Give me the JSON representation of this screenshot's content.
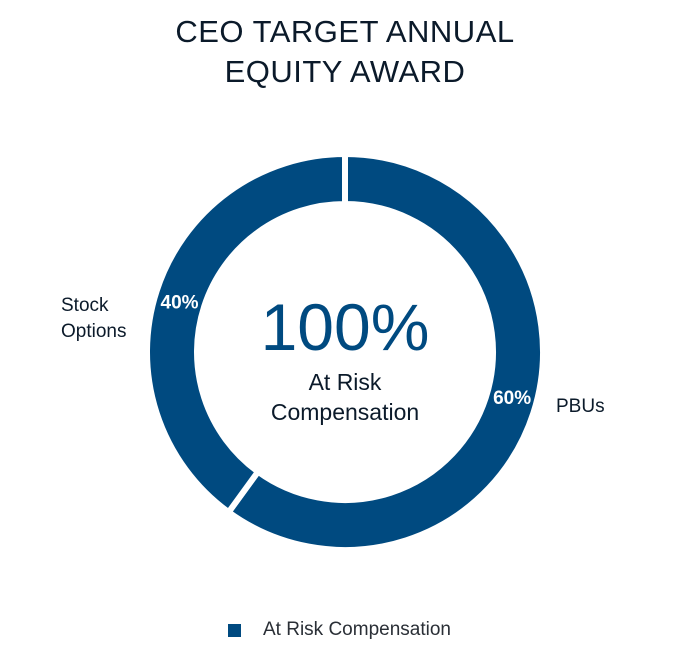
{
  "title_lines": [
    "CEO TARGET ANNUAL",
    "EQUITY AWARD"
  ],
  "center": {
    "value": "100%",
    "label_lines": [
      "At Risk",
      "Compensation"
    ]
  },
  "legend": {
    "label": "At Risk Compensation",
    "color": "#004a80"
  },
  "colors": {
    "slice": "#004a80",
    "separator": "#ffffff",
    "text_dark": "#0b1a2a",
    "center_value": "#004a80"
  },
  "chart_data": {
    "type": "pie",
    "variant": "donut",
    "title": "CEO TARGET ANNUAL EQUITY AWARD",
    "categories": [
      "PBUs",
      "Stock Options"
    ],
    "category_label_lines": [
      [
        "PBUs"
      ],
      [
        "Stock",
        "Options"
      ]
    ],
    "values": [
      60,
      40
    ],
    "value_labels": [
      "60%",
      "40%"
    ],
    "series": [
      {
        "name": "At Risk Compensation",
        "values": [
          60,
          40
        ]
      }
    ],
    "start": "top",
    "direction": "clockwise"
  }
}
